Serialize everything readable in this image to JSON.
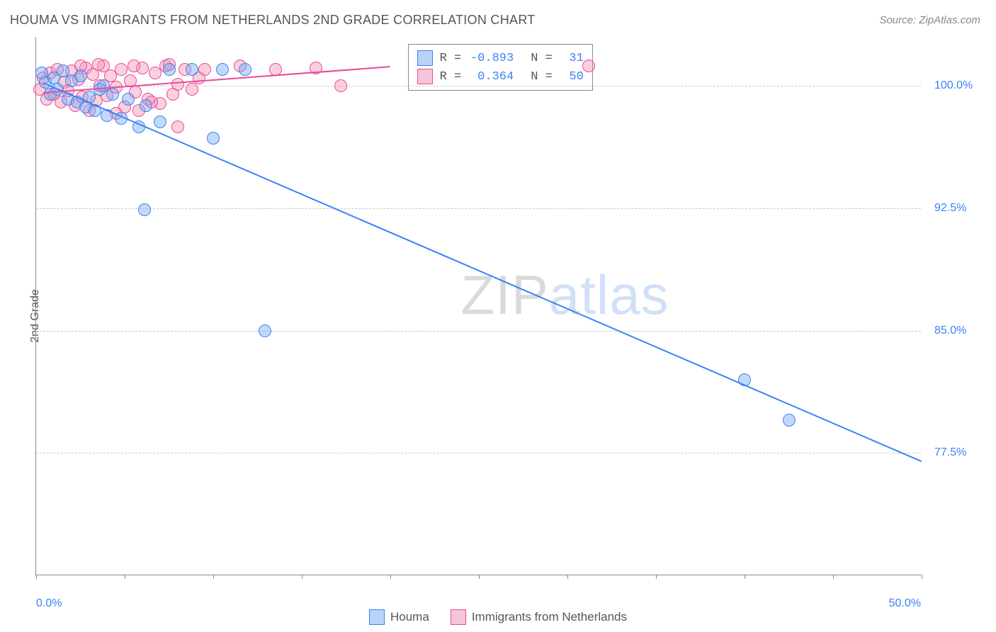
{
  "title": "HOUMA VS IMMIGRANTS FROM NETHERLANDS 2ND GRADE CORRELATION CHART",
  "source": "Source: ZipAtlas.com",
  "y_axis_label": "2nd Grade",
  "watermark": {
    "part1": "ZIP",
    "part2": "atlas"
  },
  "chart": {
    "type": "scatter",
    "xlim": [
      0,
      50
    ],
    "ylim": [
      70,
      103
    ],
    "x_ticks": [
      0,
      5,
      10,
      15,
      20,
      25,
      30,
      35,
      40,
      45,
      50
    ],
    "y_gridlines": [
      77.5,
      85.0,
      92.5,
      100.0
    ],
    "y_tick_labels": [
      "77.5%",
      "85.0%",
      "92.5%",
      "100.0%"
    ],
    "x_min_label": "0.0%",
    "x_max_label": "50.0%",
    "background_color": "#ffffff",
    "grid_color": "#cccccc",
    "axis_color": "#888888",
    "marker_radius": 9,
    "marker_stroke_width": 1.2,
    "line_width": 2
  },
  "series": [
    {
      "name": "Houma",
      "color_fill": "rgba(120,170,240,0.45)",
      "color_stroke": "#3b82f6",
      "swatch_fill": "#b9d2f5",
      "swatch_border": "#3b82f6",
      "R": "-0.893",
      "N": "31",
      "trend": {
        "x1": 0.4,
        "y1": 100.2,
        "x2": 50,
        "y2": 77.0
      },
      "points": [
        [
          0.3,
          100.8
        ],
        [
          0.5,
          100.2
        ],
        [
          0.8,
          99.5
        ],
        [
          1.0,
          100.5
        ],
        [
          1.2,
          99.8
        ],
        [
          1.5,
          100.9
        ],
        [
          1.8,
          99.2
        ],
        [
          2.0,
          100.3
        ],
        [
          2.3,
          99.0
        ],
        [
          2.5,
          100.6
        ],
        [
          2.8,
          98.7
        ],
        [
          3.0,
          99.3
        ],
        [
          3.3,
          98.5
        ],
        [
          3.6,
          99.8
        ],
        [
          4.0,
          98.2
        ],
        [
          4.3,
          99.5
        ],
        [
          4.8,
          98.0
        ],
        [
          5.2,
          99.2
        ],
        [
          5.8,
          97.5
        ],
        [
          6.2,
          98.8
        ],
        [
          7.0,
          97.8
        ],
        [
          7.5,
          101.0
        ],
        [
          8.8,
          101.0
        ],
        [
          10.5,
          101.0
        ],
        [
          11.8,
          101.0
        ],
        [
          6.1,
          92.4
        ],
        [
          10.0,
          96.8
        ],
        [
          12.9,
          85.0
        ],
        [
          40.0,
          82.0
        ],
        [
          42.5,
          79.5
        ],
        [
          3.8,
          100.0
        ]
      ]
    },
    {
      "name": "Immigrants from Netherlands",
      "color_fill": "rgba(245,150,180,0.45)",
      "color_stroke": "#ec4899",
      "swatch_fill": "#f5c6d8",
      "swatch_border": "#ec4899",
      "R": "0.364",
      "N": "50",
      "trend": {
        "x1": 0.4,
        "y1": 99.6,
        "x2": 20,
        "y2": 101.2
      },
      "points": [
        [
          0.2,
          99.8
        ],
        [
          0.4,
          100.5
        ],
        [
          0.6,
          99.2
        ],
        [
          0.8,
          100.8
        ],
        [
          1.0,
          99.5
        ],
        [
          1.2,
          101.0
        ],
        [
          1.4,
          99.0
        ],
        [
          1.6,
          100.2
        ],
        [
          1.8,
          99.7
        ],
        [
          2.0,
          100.9
        ],
        [
          2.2,
          98.8
        ],
        [
          2.4,
          100.4
        ],
        [
          2.6,
          99.3
        ],
        [
          2.8,
          101.1
        ],
        [
          3.0,
          98.5
        ],
        [
          3.2,
          100.7
        ],
        [
          3.4,
          99.1
        ],
        [
          3.6,
          100.0
        ],
        [
          3.8,
          101.2
        ],
        [
          4.0,
          99.4
        ],
        [
          4.2,
          100.6
        ],
        [
          4.5,
          99.9
        ],
        [
          4.8,
          101.0
        ],
        [
          5.0,
          98.7
        ],
        [
          5.3,
          100.3
        ],
        [
          5.6,
          99.6
        ],
        [
          6.0,
          101.1
        ],
        [
          6.3,
          99.2
        ],
        [
          6.7,
          100.8
        ],
        [
          7.0,
          98.9
        ],
        [
          7.3,
          101.2
        ],
        [
          7.7,
          99.5
        ],
        [
          8.0,
          100.1
        ],
        [
          8.4,
          101.0
        ],
        [
          8.8,
          99.8
        ],
        [
          9.2,
          100.5
        ],
        [
          4.5,
          98.3
        ],
        [
          5.8,
          98.5
        ],
        [
          8.0,
          97.5
        ],
        [
          6.5,
          99.0
        ],
        [
          2.5,
          101.2
        ],
        [
          3.5,
          101.3
        ],
        [
          5.5,
          101.2
        ],
        [
          7.5,
          101.3
        ],
        [
          9.5,
          101.0
        ],
        [
          11.5,
          101.2
        ],
        [
          13.5,
          101.0
        ],
        [
          15.8,
          101.1
        ],
        [
          17.2,
          100.0
        ],
        [
          31.2,
          101.2
        ]
      ]
    }
  ],
  "legend_stats": {
    "R_label": "R =",
    "N_label": "N =",
    "text_color": "#555",
    "value_color": "#3b82f6"
  },
  "bottom_legend": {
    "items": [
      "Houma",
      "Immigrants from Netherlands"
    ]
  }
}
